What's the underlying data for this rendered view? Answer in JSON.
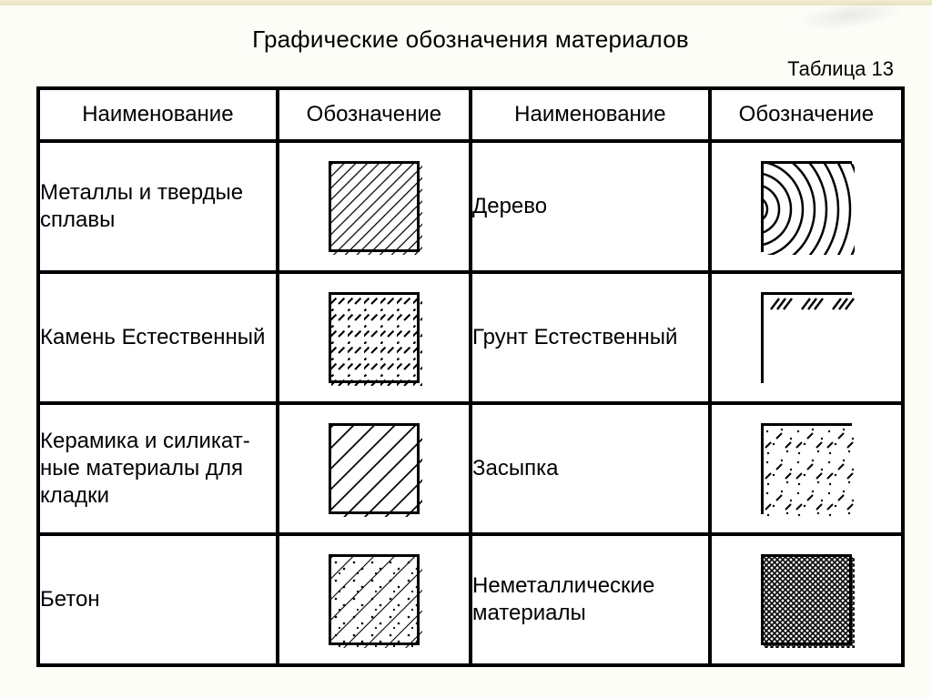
{
  "title": "Графические обозначения материалов",
  "table_label": "Таблица 13",
  "headers": {
    "name": "Наименование",
    "symbol": "Обозначение"
  },
  "rows": [
    {
      "left": {
        "name": "Металлы и твердые сплавы",
        "pattern": "metal"
      },
      "right": {
        "name": "Дерево",
        "pattern": "wood"
      }
    },
    {
      "left": {
        "name": "Камень Естественный",
        "pattern": "stone"
      },
      "right": {
        "name": "Грунт Естественный",
        "pattern": "soil"
      }
    },
    {
      "left": {
        "name": "Керамика и силикат-\nные материалы для кладки",
        "pattern": "ceramic"
      },
      "right": {
        "name": "Засыпка",
        "pattern": "fill"
      }
    },
    {
      "left": {
        "name": "Бетон",
        "pattern": "concrete"
      },
      "right": {
        "name": "Неметаллические материалы",
        "pattern": "nonmetal"
      }
    }
  ],
  "style": {
    "swatch_size": 100,
    "swatch_stroke": "#000",
    "swatch_stroke_w": 3,
    "bg": "#ffffff",
    "border_w": 4,
    "title_fontsize": 26,
    "label_fontsize": 24,
    "header_fontsize": 24
  },
  "patterns": {
    "metal": {
      "desc": "diagonal hatch 45deg, close",
      "angle": 45,
      "spacing": 9,
      "lw": 2.5
    },
    "stone": {
      "desc": "diagonal short dashes 45deg",
      "angle": 45,
      "spacing": 13,
      "lw": 2.2,
      "dash": "10 10"
    },
    "ceramic": {
      "desc": "diagonal hatch 45deg, wider spacing",
      "angle": 45,
      "spacing": 16,
      "lw": 3.5
    },
    "concrete": {
      "desc": "diagonal hatch 45deg + dots/triangles",
      "angle": 45,
      "spacing": 16,
      "lw": 2.2
    },
    "wood": {
      "desc": "wood grain concentric rings",
      "lw": 2.5
    },
    "soil": {
      "desc": "border with short ticks at top only",
      "tick_len": 14,
      "lw": 2.2
    },
    "fill": {
      "desc": "border, sparse dots + small ticks 45deg",
      "lw": 2
    },
    "nonmetal": {
      "desc": "dense crosshatch (diamond mesh)",
      "spacing": 6,
      "lw": 1.6
    }
  }
}
